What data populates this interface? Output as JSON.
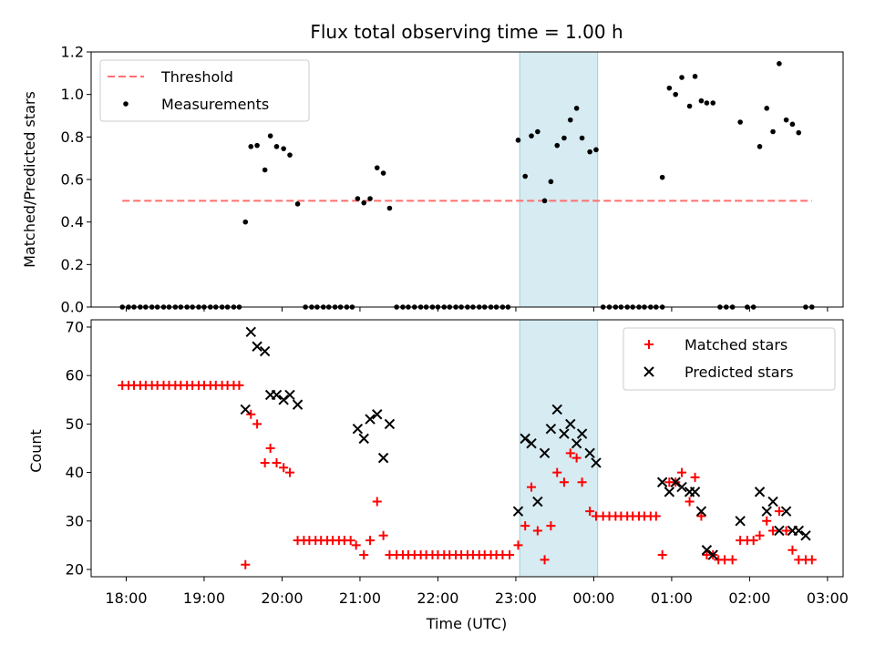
{
  "chart_data": [
    {
      "type": "scatter",
      "title": "Flux total observing time = 1.00 h",
      "xlabel": "",
      "ylabel": "Matched/Predicted stars",
      "ylim": [
        0,
        1.2
      ],
      "yticks": [
        "0.0",
        "0.2",
        "0.4",
        "0.6",
        "0.8",
        "1.0",
        "1.2"
      ],
      "shaded_interval_hours": [
        23.05,
        24.05
      ],
      "threshold": {
        "name": "Threshold",
        "value": 0.5,
        "x_range": [
          17.95,
          26.8
        ],
        "color": "#ff6e6e"
      },
      "legend_position": "upper-left",
      "series": [
        {
          "name": "Measurements",
          "color": "#000000",
          "points": [
            [
              17.95,
              0
            ],
            [
              18.03,
              0
            ],
            [
              18.1,
              0
            ],
            [
              18.18,
              0
            ],
            [
              18.25,
              0
            ],
            [
              18.33,
              0
            ],
            [
              18.4,
              0
            ],
            [
              18.48,
              0
            ],
            [
              18.55,
              0
            ],
            [
              18.63,
              0
            ],
            [
              18.7,
              0
            ],
            [
              18.78,
              0
            ],
            [
              18.85,
              0
            ],
            [
              18.93,
              0
            ],
            [
              19.0,
              0
            ],
            [
              19.08,
              0
            ],
            [
              19.15,
              0
            ],
            [
              19.23,
              0
            ],
            [
              19.3,
              0
            ],
            [
              19.38,
              0
            ],
            [
              19.45,
              0
            ],
            [
              19.53,
              0.4
            ],
            [
              19.6,
              0.755
            ],
            [
              19.68,
              0.76
            ],
            [
              19.78,
              0.645
            ],
            [
              19.85,
              0.805
            ],
            [
              19.93,
              0.755
            ],
            [
              20.02,
              0.745
            ],
            [
              20.1,
              0.715
            ],
            [
              20.2,
              0.485
            ],
            [
              20.3,
              0
            ],
            [
              20.38,
              0
            ],
            [
              20.45,
              0
            ],
            [
              20.53,
              0
            ],
            [
              20.6,
              0
            ],
            [
              20.68,
              0
            ],
            [
              20.75,
              0
            ],
            [
              20.83,
              0
            ],
            [
              20.9,
              0
            ],
            [
              20.97,
              0.51
            ],
            [
              21.05,
              0.49
            ],
            [
              21.13,
              0.51
            ],
            [
              21.22,
              0.655
            ],
            [
              21.3,
              0.63
            ],
            [
              21.38,
              0.465
            ],
            [
              21.47,
              0
            ],
            [
              21.55,
              0
            ],
            [
              21.62,
              0
            ],
            [
              21.7,
              0
            ],
            [
              21.78,
              0
            ],
            [
              21.85,
              0
            ],
            [
              21.93,
              0
            ],
            [
              22.0,
              0
            ],
            [
              22.08,
              0
            ],
            [
              22.15,
              0
            ],
            [
              22.23,
              0
            ],
            [
              22.3,
              0
            ],
            [
              22.38,
              0
            ],
            [
              22.45,
              0
            ],
            [
              22.53,
              0
            ],
            [
              22.6,
              0
            ],
            [
              22.68,
              0
            ],
            [
              22.75,
              0
            ],
            [
              22.83,
              0
            ],
            [
              22.9,
              0
            ],
            [
              23.03,
              0.785
            ],
            [
              23.12,
              0.615
            ],
            [
              23.2,
              0.805
            ],
            [
              23.28,
              0.825
            ],
            [
              23.37,
              0.5
            ],
            [
              23.45,
              0.59
            ],
            [
              23.53,
              0.76
            ],
            [
              23.62,
              0.795
            ],
            [
              23.7,
              0.88
            ],
            [
              23.78,
              0.935
            ],
            [
              23.85,
              0.795
            ],
            [
              23.95,
              0.73
            ],
            [
              24.03,
              0.74
            ],
            [
              24.12,
              0
            ],
            [
              24.2,
              0
            ],
            [
              24.28,
              0
            ],
            [
              24.35,
              0
            ],
            [
              24.43,
              0
            ],
            [
              24.5,
              0
            ],
            [
              24.58,
              0
            ],
            [
              24.65,
              0
            ],
            [
              24.73,
              0
            ],
            [
              24.8,
              0
            ],
            [
              24.88,
              0
            ],
            [
              24.88,
              0.61
            ],
            [
              24.97,
              1.03
            ],
            [
              25.05,
              1.0
            ],
            [
              25.13,
              1.08
            ],
            [
              25.23,
              0.945
            ],
            [
              25.3,
              1.085
            ],
            [
              25.38,
              0.97
            ],
            [
              25.45,
              0.96
            ],
            [
              25.53,
              0.96
            ],
            [
              25.62,
              0
            ],
            [
              25.7,
              0
            ],
            [
              25.78,
              0
            ],
            [
              25.88,
              0.87
            ],
            [
              25.97,
              0
            ],
            [
              26.05,
              0
            ],
            [
              26.13,
              0.755
            ],
            [
              26.22,
              0.935
            ],
            [
              26.3,
              0.825
            ],
            [
              26.38,
              1.145
            ],
            [
              26.47,
              0.88
            ],
            [
              26.55,
              0.86
            ],
            [
              26.63,
              0.82
            ],
            [
              26.72,
              0
            ],
            [
              26.8,
              0
            ]
          ]
        }
      ]
    },
    {
      "type": "scatter",
      "title": "",
      "xlabel": "Time (UTC)",
      "ylabel": "Count",
      "ylim": [
        18.5,
        71.5
      ],
      "yticks": [
        "20",
        "30",
        "40",
        "50",
        "60",
        "70"
      ],
      "xlim_hours": [
        17.55,
        27.2
      ],
      "xticks": [
        "18:00",
        "19:00",
        "20:00",
        "21:00",
        "22:00",
        "23:00",
        "00:00",
        "01:00",
        "02:00",
        "03:00"
      ],
      "shaded_interval_hours": [
        23.05,
        24.05
      ],
      "legend_position": "upper-right",
      "series": [
        {
          "name": "Matched stars",
          "marker": "plus",
          "color": "#ff0000",
          "points": [
            [
              17.95,
              58
            ],
            [
              18.03,
              58
            ],
            [
              18.1,
              58
            ],
            [
              18.18,
              58
            ],
            [
              18.25,
              58
            ],
            [
              18.33,
              58
            ],
            [
              18.4,
              58
            ],
            [
              18.48,
              58
            ],
            [
              18.55,
              58
            ],
            [
              18.63,
              58
            ],
            [
              18.7,
              58
            ],
            [
              18.78,
              58
            ],
            [
              18.85,
              58
            ],
            [
              18.93,
              58
            ],
            [
              19.0,
              58
            ],
            [
              19.08,
              58
            ],
            [
              19.15,
              58
            ],
            [
              19.23,
              58
            ],
            [
              19.3,
              58
            ],
            [
              19.38,
              58
            ],
            [
              19.45,
              58
            ],
            [
              19.53,
              21
            ],
            [
              19.6,
              52
            ],
            [
              19.68,
              50
            ],
            [
              19.78,
              42
            ],
            [
              19.85,
              45
            ],
            [
              19.93,
              42
            ],
            [
              20.02,
              41
            ],
            [
              20.1,
              40
            ],
            [
              20.2,
              26
            ],
            [
              20.28,
              26
            ],
            [
              20.35,
              26
            ],
            [
              20.43,
              26
            ],
            [
              20.5,
              26
            ],
            [
              20.58,
              26
            ],
            [
              20.65,
              26
            ],
            [
              20.73,
              26
            ],
            [
              20.8,
              26
            ],
            [
              20.88,
              26
            ],
            [
              20.95,
              25
            ],
            [
              21.05,
              23
            ],
            [
              21.13,
              26
            ],
            [
              21.22,
              34
            ],
            [
              21.3,
              27
            ],
            [
              21.38,
              23
            ],
            [
              21.47,
              23
            ],
            [
              21.55,
              23
            ],
            [
              21.62,
              23
            ],
            [
              21.7,
              23
            ],
            [
              21.78,
              23
            ],
            [
              21.85,
              23
            ],
            [
              21.93,
              23
            ],
            [
              22.0,
              23
            ],
            [
              22.08,
              23
            ],
            [
              22.15,
              23
            ],
            [
              22.23,
              23
            ],
            [
              22.3,
              23
            ],
            [
              22.38,
              23
            ],
            [
              22.45,
              23
            ],
            [
              22.53,
              23
            ],
            [
              22.6,
              23
            ],
            [
              22.68,
              23
            ],
            [
              22.75,
              23
            ],
            [
              22.83,
              23
            ],
            [
              22.92,
              23
            ],
            [
              23.03,
              25
            ],
            [
              23.12,
              29
            ],
            [
              23.2,
              37
            ],
            [
              23.28,
              28
            ],
            [
              23.37,
              22
            ],
            [
              23.45,
              29
            ],
            [
              23.53,
              40
            ],
            [
              23.62,
              38
            ],
            [
              23.7,
              44
            ],
            [
              23.78,
              43
            ],
            [
              23.85,
              38
            ],
            [
              23.95,
              32
            ],
            [
              24.03,
              31
            ],
            [
              24.12,
              31
            ],
            [
              24.2,
              31
            ],
            [
              24.28,
              31
            ],
            [
              24.35,
              31
            ],
            [
              24.43,
              31
            ],
            [
              24.5,
              31
            ],
            [
              24.58,
              31
            ],
            [
              24.65,
              31
            ],
            [
              24.73,
              31
            ],
            [
              24.8,
              31
            ],
            [
              24.88,
              23
            ],
            [
              24.97,
              38
            ],
            [
              25.05,
              38
            ],
            [
              25.13,
              40
            ],
            [
              25.23,
              34
            ],
            [
              25.3,
              39
            ],
            [
              25.38,
              31
            ],
            [
              25.45,
              23
            ],
            [
              25.53,
              23
            ],
            [
              25.6,
              22
            ],
            [
              25.68,
              22
            ],
            [
              25.78,
              22
            ],
            [
              25.88,
              26
            ],
            [
              25.97,
              26
            ],
            [
              26.05,
              26
            ],
            [
              26.13,
              27
            ],
            [
              26.22,
              30
            ],
            [
              26.3,
              28
            ],
            [
              26.38,
              32
            ],
            [
              26.47,
              28
            ],
            [
              26.55,
              24
            ],
            [
              26.63,
              22
            ],
            [
              26.72,
              22
            ],
            [
              26.8,
              22
            ]
          ]
        },
        {
          "name": "Predicted stars",
          "marker": "x",
          "color": "#000000",
          "points": [
            [
              19.53,
              53
            ],
            [
              19.6,
              69
            ],
            [
              19.68,
              66
            ],
            [
              19.78,
              65
            ],
            [
              19.85,
              56
            ],
            [
              19.93,
              56
            ],
            [
              20.02,
              55
            ],
            [
              20.1,
              56
            ],
            [
              20.2,
              54
            ],
            [
              20.97,
              49
            ],
            [
              21.05,
              47
            ],
            [
              21.13,
              51
            ],
            [
              21.22,
              52
            ],
            [
              21.3,
              43
            ],
            [
              21.38,
              50
            ],
            [
              23.03,
              32
            ],
            [
              23.12,
              47
            ],
            [
              23.2,
              46
            ],
            [
              23.28,
              34
            ],
            [
              23.37,
              44
            ],
            [
              23.45,
              49
            ],
            [
              23.53,
              53
            ],
            [
              23.62,
              48
            ],
            [
              23.7,
              50
            ],
            [
              23.78,
              46
            ],
            [
              23.85,
              48
            ],
            [
              23.95,
              44
            ],
            [
              24.03,
              42
            ],
            [
              24.88,
              38
            ],
            [
              24.97,
              36
            ],
            [
              25.05,
              38
            ],
            [
              25.13,
              37
            ],
            [
              25.23,
              36
            ],
            [
              25.3,
              36
            ],
            [
              25.38,
              32
            ],
            [
              25.45,
              24
            ],
            [
              25.53,
              23
            ],
            [
              25.88,
              30
            ],
            [
              26.13,
              36
            ],
            [
              26.22,
              32
            ],
            [
              26.3,
              34
            ],
            [
              26.38,
              28
            ],
            [
              26.47,
              32
            ],
            [
              26.55,
              28
            ],
            [
              26.63,
              28
            ],
            [
              26.72,
              27
            ]
          ]
        }
      ]
    }
  ]
}
